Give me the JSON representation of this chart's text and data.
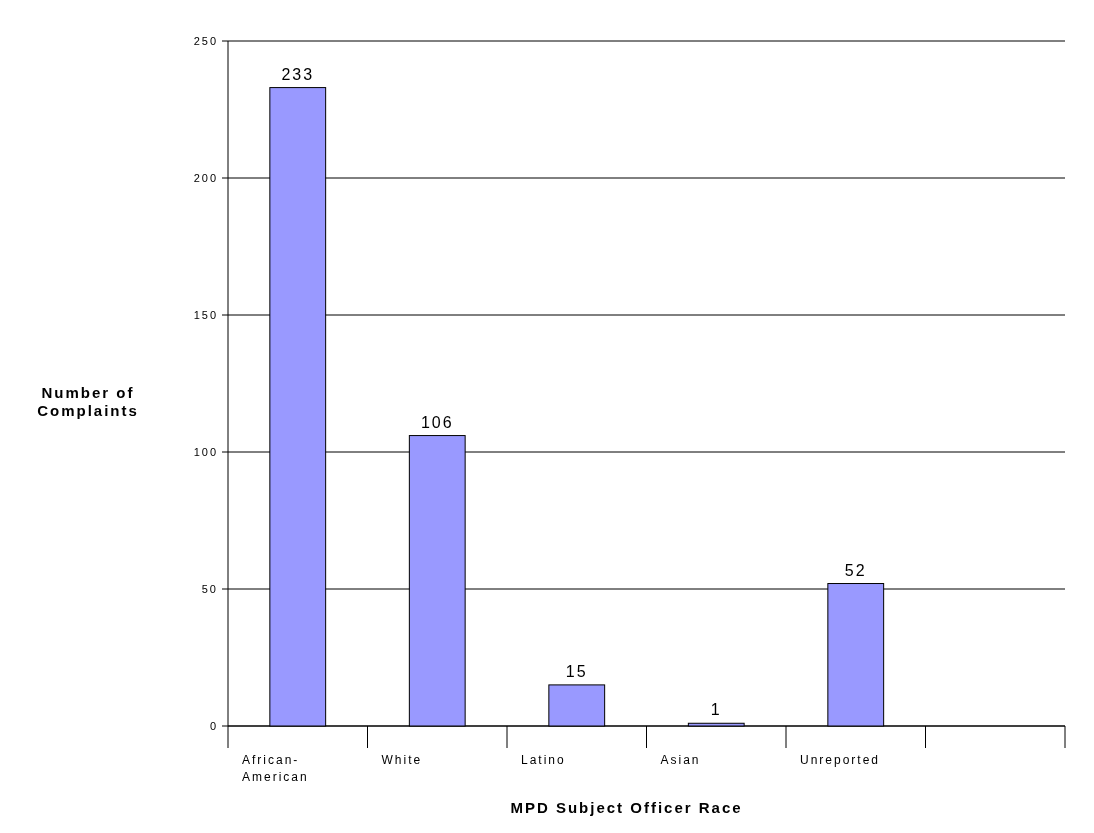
{
  "chart_data": {
    "type": "bar",
    "xlabel": "MPD Subject Officer Race",
    "ylabel": "Number of Complaints",
    "categories": [
      "African-American",
      "White",
      "Latino",
      "Asian",
      "Unreported",
      null
    ],
    "values": [
      233,
      106,
      15,
      1,
      52,
      null
    ],
    "color": "#9999ff",
    "ylim": [
      0,
      250
    ],
    "yticks": [
      0,
      50,
      100,
      150,
      200,
      250
    ],
    "grid": "y",
    "data_labels": true
  }
}
